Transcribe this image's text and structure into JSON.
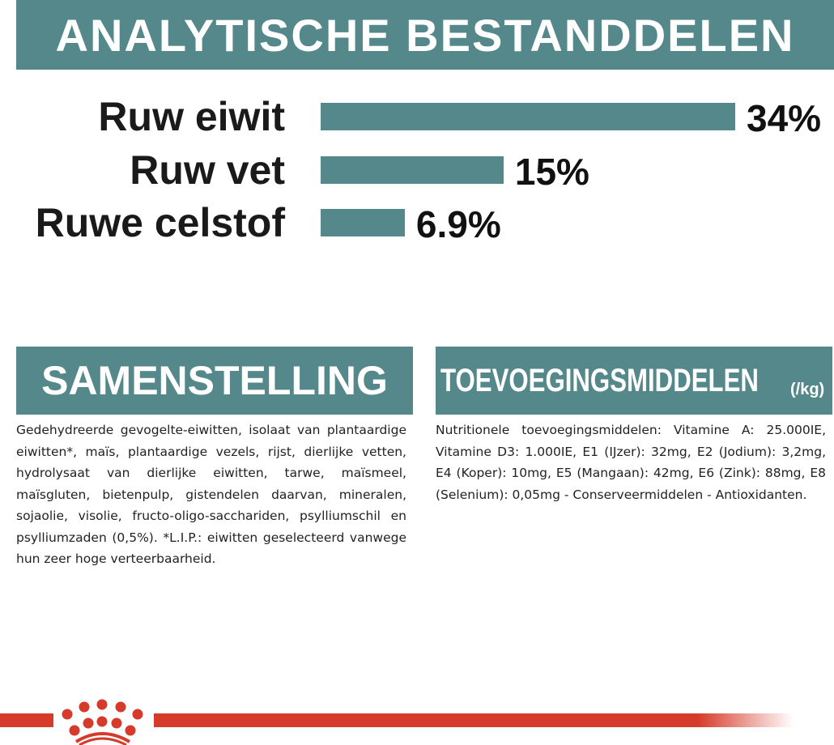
{
  "header": {
    "title": "ANALYTISCHE BESTANDDELEN"
  },
  "chart_data": {
    "type": "bar",
    "orientation": "horizontal",
    "categories": [
      "Ruw eiwit",
      "Ruw vet",
      "Ruwe celstof"
    ],
    "values": [
      34,
      15,
      6.9
    ],
    "value_labels": [
      "34%",
      "15%",
      "6.9%"
    ],
    "unit": "%",
    "bar_color": "#55888a"
  },
  "samenstelling": {
    "title": "SAMENSTELLING",
    "text": "Gedehydreerde gevogelte-eiwitten, isolaat van plantaardige eiwitten*, maïs, plantaardige vezels, rijst, dierlijke vetten, hydrolysaat van dierlijke eiwitten, tarwe, maïsmeel, maïsgluten, bietenpulp, gistendelen daarvan, mineralen, sojaolie, visolie, fructo-oligo-sacchariden, psylliumschil en psylliumzaden (0,5%). *L.I.P.: eiwitten geselecteerd vanwege hun zeer hoge verteerbaarheid."
  },
  "toevoegingsmiddelen": {
    "title": "TOEVOEGINGSMIDDELEN",
    "unit": "(/kg)",
    "text": "Nutritionele toevoegingsmiddelen: Vitamine A: 25.000IE, Vitamine D3: 1.000IE, E1 (IJzer): 32mg, E2 (Jodium): 3,2mg, E4 (Koper): 10mg, E5 (Mangaan): 42mg, E6 (Zink): 88mg, E8 (Selenium): 0,05mg - Conserveermiddelen - Antioxidanten."
  },
  "colors": {
    "teal": "#55888a",
    "brand_red": "#d63a2a"
  },
  "logo": {
    "icon": "royal-canin-crown-icon"
  }
}
